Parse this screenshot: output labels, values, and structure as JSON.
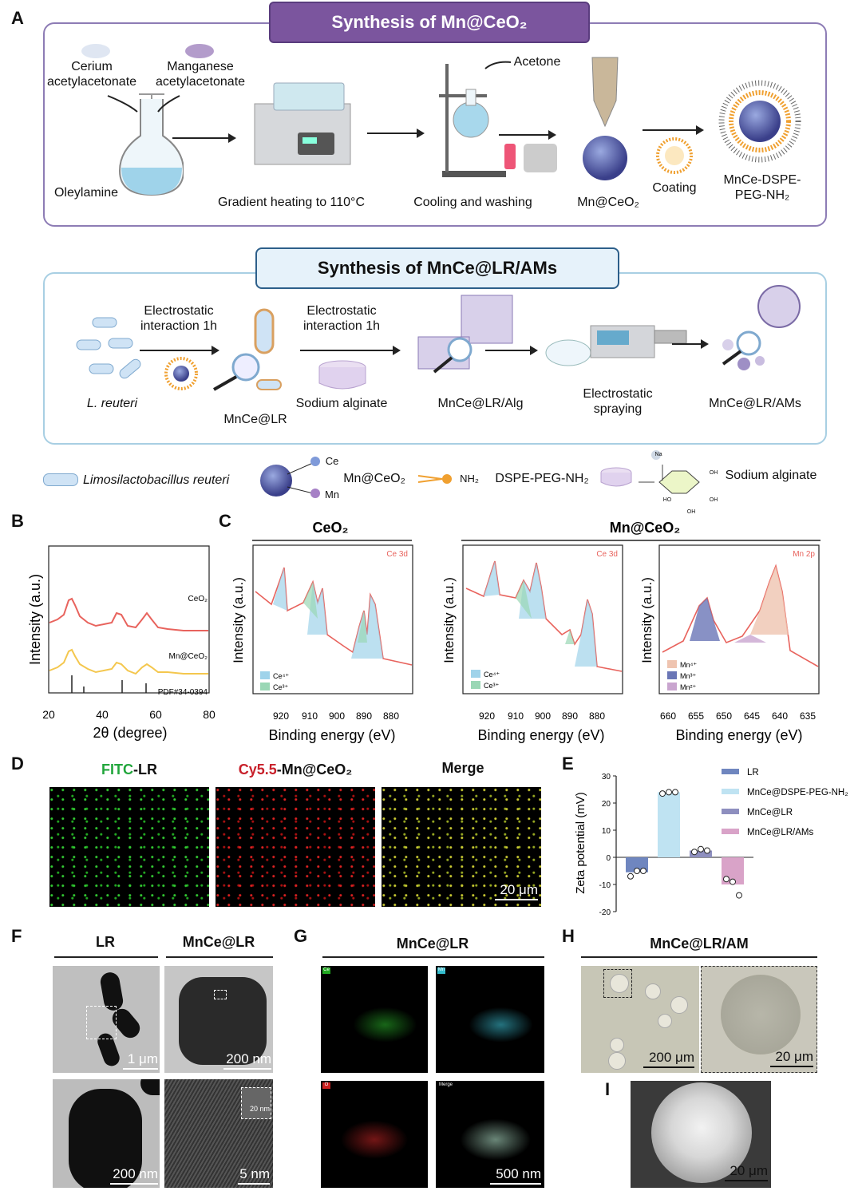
{
  "panels": {
    "A": "A",
    "B": "B",
    "C": "C",
    "D": "D",
    "E": "E",
    "F": "F",
    "G": "G",
    "H": "H",
    "I": "I"
  },
  "synthesis_mnceo2": {
    "title": "Synthesis of Mn@CeO₂",
    "cerium": "Cerium acetylacetonate",
    "manganese": "Manganese acetylacetonate",
    "oleylamine": "Oleylamine",
    "heating": "Gradient heating to 110°C",
    "acetone": "Acetone",
    "cooling": "Cooling and washing",
    "product": "Mn@CeO₂",
    "coating": "Coating",
    "final": "MnCe-DSPE-PEG-NH₂"
  },
  "synthesis_ams": {
    "title": "Synthesis of MnCe@LR/AMs",
    "elec1": "Electrostatic interaction 1h",
    "elec2": "Electrostatic interaction 1h",
    "lreuteri": "L. reuteri",
    "mncelr": "MnCe@LR",
    "alginate": "Sodium alginate",
    "alg": "MnCe@LR/Alg",
    "spraying": "Electrostatic spraying",
    "ams": "MnCe@LR/AMs"
  },
  "legend": {
    "limo": "Limosilactobacillus reuteri",
    "ce": "Ce",
    "mn": "Mn",
    "mnceo2": "Mn@CeO₂",
    "nh2": "NH₂",
    "dspe": "DSPE-PEG-NH₂",
    "alginate": "Sodium alginate",
    "oh": "OH",
    "ho": "HO",
    "na": "Na"
  },
  "xrd": {
    "ylabel": "Intensity (a.u.)",
    "xlabel": "2θ (degree)",
    "xticks": [
      "20",
      "40",
      "60",
      "80"
    ],
    "ceo2": "CeO₂",
    "mnceo2": "Mn@CeO₂",
    "pdf": "PDF#34-0394"
  },
  "xps": {
    "ceo2_title": "CeO₂",
    "mnceo2_title": "Mn@CeO₂",
    "ylabel": "Intensity (a.u.)",
    "xlabel": "Binding energy (eV)",
    "ce3d": "Ce 3d",
    "mn2p": "Mn 2p",
    "ce_ticks": [
      "920",
      "910",
      "900",
      "890",
      "880"
    ],
    "mn_ticks": [
      "660",
      "655",
      "650",
      "645",
      "640",
      "635"
    ],
    "ce4": "Ce⁴⁺",
    "ce3": "Ce³⁺",
    "mn4": "Mn⁴⁺",
    "mn3": "Mn³⁺",
    "mn2": "Mn²⁺"
  },
  "fluor": {
    "fitc": "FITC",
    "lr": "-LR",
    "cy": "Cy5.5",
    "mn": "-Mn@CeO₂",
    "merge": "Merge",
    "scale": "20 μm"
  },
  "chart_data": {
    "type": "bar",
    "title": "",
    "ylabel": "Zeta potential (mV)",
    "xlabel": "",
    "ylim": [
      -20,
      30
    ],
    "yticks": [
      "30",
      "20",
      "10",
      "0",
      "-10",
      "-20"
    ],
    "categories": [
      "LR",
      "MnCe@DSPE-PEG-NH₂",
      "MnCe@LR",
      "MnCe@LR/AMs"
    ],
    "values": [
      -5.5,
      24,
      2.5,
      -10
    ],
    "points": [
      [
        -7,
        -5,
        -5
      ],
      [
        23.5,
        24,
        24
      ],
      [
        2,
        3,
        2.5
      ],
      [
        -8,
        -9,
        -14
      ]
    ],
    "colors": [
      "#6f86bf",
      "#bfe3f2",
      "#8e8fbf",
      "#d9a3c8"
    ],
    "legend_position": "top-right"
  },
  "tem": {
    "lr": "LR",
    "mncelr": "MnCe@LR",
    "s1": "1 μm",
    "s2": "200 nm",
    "s3": "200 nm",
    "s4": "5 nm",
    "s5": "20 nm"
  },
  "eds": {
    "title": "MnCe@LR",
    "scale": "500 nm",
    "ce": "Ce",
    "mn": "Mn",
    "o": "O",
    "merge": "Merge"
  },
  "am": {
    "title": "MnCe@LR/AM",
    "s1": "200 μm",
    "s2": "20 μm",
    "s3": "20 μm"
  }
}
